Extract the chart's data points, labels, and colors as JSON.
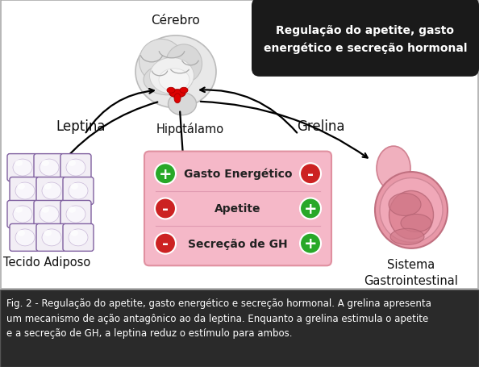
{
  "title_box_text": "Regulação do apetite, gasto\nenergético e secreção hormonal",
  "title_box_bg": "#1a1a1a",
  "title_box_text_color": "#ffffff",
  "label_cerebro": "Cérebro",
  "label_hipotalamo": "Hipotálamo",
  "label_leptina": "Leptina",
  "label_grelina": "Grelina",
  "label_tecido": "Tecido Adiposo",
  "label_sistema": "Sistema\nGastrointestinal",
  "table_bg": "#f5b8c8",
  "table_rows": [
    "Gasto Energético",
    "Apetite",
    "Secreção de GH"
  ],
  "plus_color": "#28a828",
  "minus_color": "#cc2222",
  "leptina_signs": [
    "+",
    "-",
    "-"
  ],
  "grelina_signs": [
    "-",
    "+",
    "+"
  ],
  "caption": "Fig. 2 - Regulação do apetite, gasto energético e secreção hormonal. A grelina apresenta\num mecanismo de ação antagônico ao da leptina. Enquanto a grelina estimula o apetite\ne a secreção de GH, a leptina reduz o estímulo para ambos.",
  "caption_bg": "#2a2a2a",
  "caption_text_color": "#ffffff",
  "bg_color": "#ffffff",
  "fig_width": 5.94,
  "fig_height": 4.56,
  "dpi": 100
}
